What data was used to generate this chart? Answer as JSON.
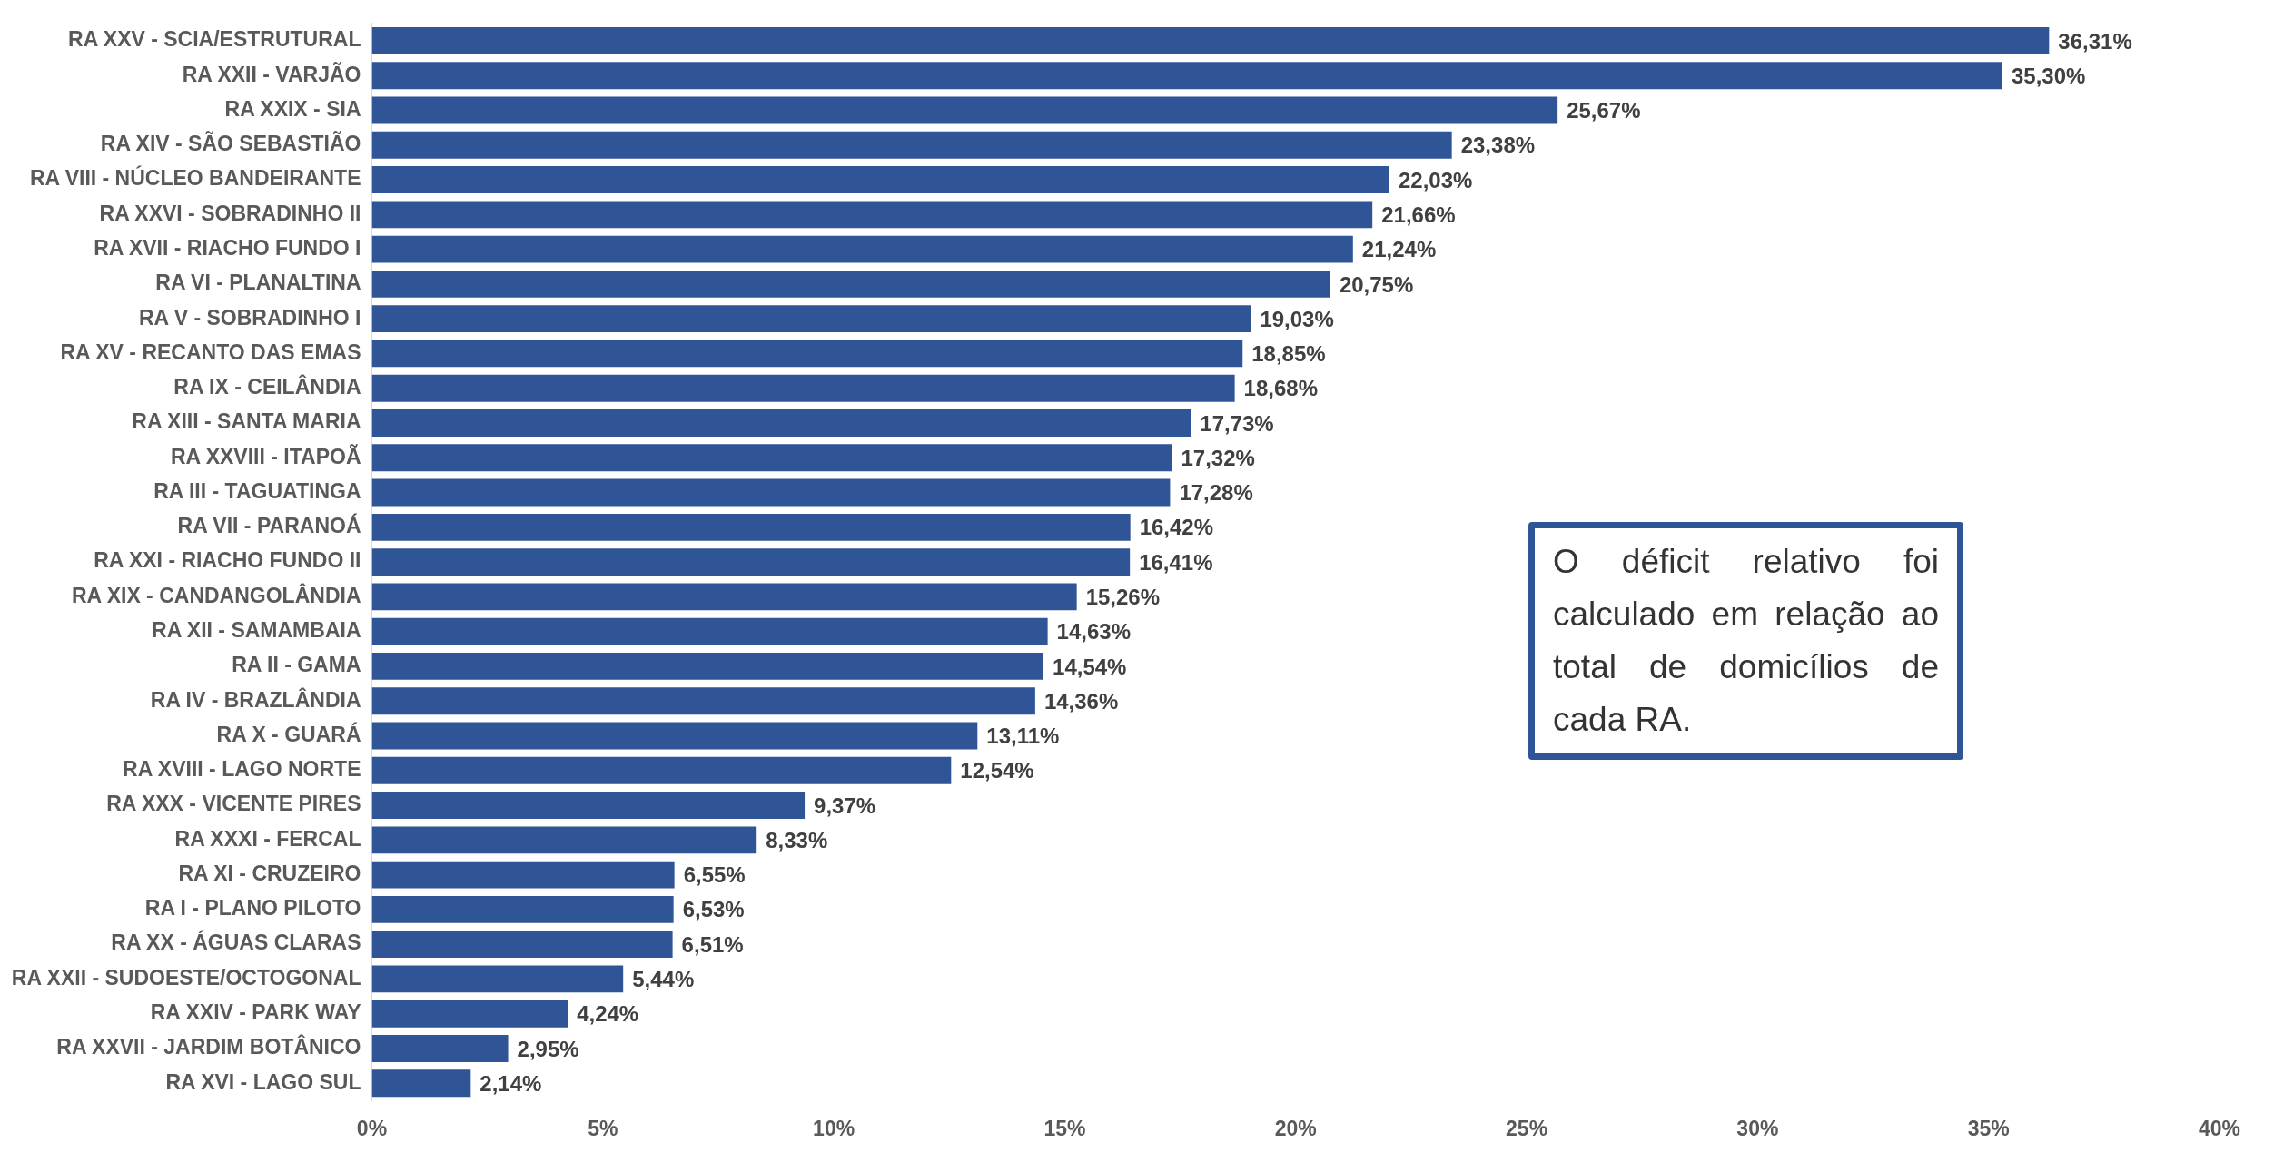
{
  "chart_data": {
    "type": "bar",
    "orientation": "horizontal",
    "categories": [
      "RA XXV - SCIA/ESTRUTURAL",
      "RA XXII - VARJÃO",
      "RA XXIX - SIA",
      "RA XIV - SÃO SEBASTIÃO",
      "RA VIII - NÚCLEO BANDEIRANTE",
      "RA XXVI - SOBRADINHO II",
      "RA XVII - RIACHO FUNDO I",
      "RA VI - PLANALTINA",
      "RA V - SOBRADINHO I",
      "RA XV - RECANTO DAS EMAS",
      "RA IX - CEILÂNDIA",
      "RA XIII - SANTA MARIA",
      "RA XXVIII - ITAPOÃ",
      "RA III - TAGUATINGA",
      "RA VII - PARANOÁ",
      "RA XXI - RIACHO FUNDO II",
      "RA XIX - CANDANGOLÂNDIA",
      "RA XII - SAMAMBAIA",
      "RA II - GAMA",
      "RA IV - BRAZLÂNDIA",
      "RA X - GUARÁ",
      "RA XVIII - LAGO NORTE",
      "RA XXX - VICENTE PIRES",
      "RA XXXI - FERCAL",
      "RA XI - CRUZEIRO",
      "RA I - PLANO PILOTO",
      "RA XX - ÁGUAS CLARAS",
      "RA XXII - SUDOESTE/OCTOGONAL",
      "RA XXIV - PARK WAY",
      "RA XXVII - JARDIM BOTÂNICO",
      "RA XVI - LAGO SUL"
    ],
    "values": [
      36.31,
      35.3,
      25.67,
      23.38,
      22.03,
      21.66,
      21.24,
      20.75,
      19.03,
      18.85,
      18.68,
      17.73,
      17.32,
      17.28,
      16.42,
      16.41,
      15.26,
      14.63,
      14.54,
      14.36,
      13.11,
      12.54,
      9.37,
      8.33,
      6.55,
      6.53,
      6.51,
      5.44,
      4.24,
      2.95,
      2.14
    ],
    "value_labels": [
      "36,31%",
      "35,30%",
      "25,67%",
      "23,38%",
      "22,03%",
      "21,66%",
      "21,24%",
      "20,75%",
      "19,03%",
      "18,85%",
      "18,68%",
      "17,73%",
      "17,32%",
      "17,28%",
      "16,42%",
      "16,41%",
      "15,26%",
      "14,63%",
      "14,54%",
      "14,36%",
      "13,11%",
      "12,54%",
      "9,37%",
      "8,33%",
      "6,55%",
      "6,53%",
      "6,51%",
      "5,44%",
      "4,24%",
      "2,95%",
      "2,14%"
    ],
    "color": "#2f5597",
    "xlim": [
      0,
      40
    ],
    "xticks": [
      {
        "value": 0,
        "label": "0%"
      },
      {
        "value": 5,
        "label": "5%"
      },
      {
        "value": 10,
        "label": "10%"
      },
      {
        "value": 15,
        "label": "15%"
      },
      {
        "value": 20,
        "label": "20%"
      },
      {
        "value": 25,
        "label": "25%"
      },
      {
        "value": 30,
        "label": "30%"
      },
      {
        "value": 35,
        "label": "35%"
      },
      {
        "value": 40,
        "label": "40%"
      }
    ],
    "grid": false,
    "legend": false,
    "annotations": [
      "O déficit relativo foi calculado em relação ao total de domicílios de cada RA."
    ]
  }
}
